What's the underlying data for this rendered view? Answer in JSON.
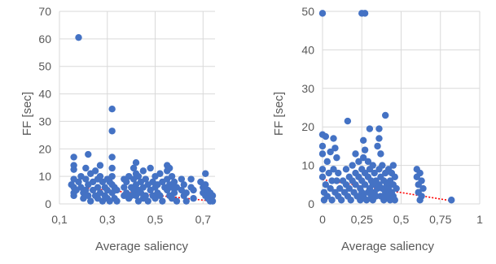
{
  "chart_data": [
    {
      "type": "scatter",
      "title": "",
      "xlabel": "Average saliency",
      "ylabel": "FF [sec]",
      "xlim": [
        0.1,
        0.75
      ],
      "ylim": [
        0,
        70
      ],
      "x_ticks": [
        "0,1",
        "0,3",
        "0,5",
        "0,7"
      ],
      "x_tick_values": [
        0.1,
        0.3,
        0.5,
        0.7
      ],
      "y_ticks": [
        "0",
        "10",
        "20",
        "30",
        "40",
        "50",
        "60",
        "70"
      ],
      "y_tick_values": [
        0,
        10,
        20,
        30,
        40,
        50,
        60,
        70
      ],
      "grid": "vertical and horizontal major gridlines",
      "marker_color": "#4472C4",
      "trendline": {
        "type": "linear",
        "color": "#FF0000",
        "style": "dotted",
        "start": [
          0.15,
          6.3
        ],
        "end": [
          0.72,
          1.2
        ]
      },
      "points": [
        [
          0.18,
          60.5
        ],
        [
          0.32,
          34.5
        ],
        [
          0.32,
          26.5
        ],
        [
          0.16,
          17
        ],
        [
          0.22,
          18
        ],
        [
          0.32,
          17
        ],
        [
          0.16,
          14
        ],
        [
          0.16,
          12.5
        ],
        [
          0.16,
          9
        ],
        [
          0.15,
          7
        ],
        [
          0.16,
          6
        ],
        [
          0.16,
          4
        ],
        [
          0.16,
          3
        ],
        [
          0.17,
          5
        ],
        [
          0.18,
          8
        ],
        [
          0.19,
          10
        ],
        [
          0.19,
          6
        ],
        [
          0.2,
          4
        ],
        [
          0.2,
          2
        ],
        [
          0.21,
          13
        ],
        [
          0.21,
          9
        ],
        [
          0.21,
          5
        ],
        [
          0.22,
          7
        ],
        [
          0.22,
          3
        ],
        [
          0.23,
          11
        ],
        [
          0.23,
          1
        ],
        [
          0.24,
          8
        ],
        [
          0.24,
          5
        ],
        [
          0.25,
          12
        ],
        [
          0.25,
          3
        ],
        [
          0.26,
          9
        ],
        [
          0.26,
          6
        ],
        [
          0.26,
          2
        ],
        [
          0.27,
          14
        ],
        [
          0.27,
          10
        ],
        [
          0.27,
          4
        ],
        [
          0.28,
          8
        ],
        [
          0.28,
          1
        ],
        [
          0.29,
          6
        ],
        [
          0.29,
          3
        ],
        [
          0.3,
          9
        ],
        [
          0.3,
          5
        ],
        [
          0.3,
          2
        ],
        [
          0.31,
          8
        ],
        [
          0.31,
          1
        ],
        [
          0.32,
          13
        ],
        [
          0.32,
          10
        ],
        [
          0.32,
          7
        ],
        [
          0.32,
          4
        ],
        [
          0.33,
          6
        ],
        [
          0.33,
          2
        ],
        [
          0.34,
          5
        ],
        [
          0.34,
          1
        ],
        [
          0.37,
          9
        ],
        [
          0.37,
          6
        ],
        [
          0.37,
          3
        ],
        [
          0.38,
          8
        ],
        [
          0.38,
          4
        ],
        [
          0.39,
          10
        ],
        [
          0.39,
          2
        ],
        [
          0.4,
          6
        ],
        [
          0.4,
          3
        ],
        [
          0.41,
          13
        ],
        [
          0.41,
          9
        ],
        [
          0.41,
          5
        ],
        [
          0.42,
          15
        ],
        [
          0.42,
          11
        ],
        [
          0.42,
          7
        ],
        [
          0.42,
          3
        ],
        [
          0.43,
          10
        ],
        [
          0.43,
          5
        ],
        [
          0.43,
          1
        ],
        [
          0.44,
          8
        ],
        [
          0.44,
          4
        ],
        [
          0.45,
          12
        ],
        [
          0.45,
          6
        ],
        [
          0.45,
          2
        ],
        [
          0.46,
          9
        ],
        [
          0.46,
          3
        ],
        [
          0.47,
          7
        ],
        [
          0.47,
          1
        ],
        [
          0.48,
          13
        ],
        [
          0.48,
          5
        ],
        [
          0.49,
          8
        ],
        [
          0.49,
          3
        ],
        [
          0.5,
          10
        ],
        [
          0.5,
          6
        ],
        [
          0.5,
          2
        ],
        [
          0.51,
          7
        ],
        [
          0.51,
          4
        ],
        [
          0.52,
          11
        ],
        [
          0.52,
          3
        ],
        [
          0.53,
          8
        ],
        [
          0.53,
          1
        ],
        [
          0.54,
          6
        ],
        [
          0.55,
          14
        ],
        [
          0.55,
          12
        ],
        [
          0.55,
          9
        ],
        [
          0.55,
          5
        ],
        [
          0.56,
          13
        ],
        [
          0.56,
          7
        ],
        [
          0.56,
          3
        ],
        [
          0.57,
          10
        ],
        [
          0.57,
          6
        ],
        [
          0.57,
          2
        ],
        [
          0.58,
          8
        ],
        [
          0.58,
          4
        ],
        [
          0.59,
          6
        ],
        [
          0.59,
          1
        ],
        [
          0.61,
          9
        ],
        [
          0.61,
          5
        ],
        [
          0.62,
          7
        ],
        [
          0.62,
          3
        ],
        [
          0.63,
          4
        ],
        [
          0.63,
          1
        ],
        [
          0.65,
          9
        ],
        [
          0.65,
          6
        ],
        [
          0.66,
          5
        ],
        [
          0.66,
          2
        ],
        [
          0.69,
          8
        ],
        [
          0.7,
          6
        ],
        [
          0.7,
          4
        ],
        [
          0.71,
          11
        ],
        [
          0.71,
          7
        ],
        [
          0.71,
          3
        ],
        [
          0.72,
          5
        ],
        [
          0.72,
          2
        ],
        [
          0.73,
          4
        ],
        [
          0.73,
          1
        ],
        [
          0.74,
          3
        ],
        [
          0.74,
          1
        ]
      ]
    },
    {
      "type": "scatter",
      "title": "",
      "xlabel": "Average saliency",
      "ylabel": "FF [sec]",
      "xlim": [
        0,
        1
      ],
      "ylim": [
        0,
        50
      ],
      "x_ticks": [
        "0",
        "0,25",
        "0,5",
        "0,75",
        "1"
      ],
      "x_tick_values": [
        0,
        0.25,
        0.5,
        0.75,
        1
      ],
      "y_ticks": [
        "0",
        "10",
        "20",
        "30",
        "40",
        "50"
      ],
      "y_tick_values": [
        0,
        10,
        20,
        30,
        40,
        50
      ],
      "grid": "vertical and horizontal major gridlines",
      "marker_color": "#4472C4",
      "trendline": {
        "type": "linear",
        "color": "#FF0000",
        "style": "dotted",
        "start": [
          0,
          6.3
        ],
        "end": [
          0.82,
          0.8
        ]
      },
      "points": [
        [
          0.0,
          49.5
        ],
        [
          0.25,
          49.5
        ],
        [
          0.27,
          49.5
        ],
        [
          0.0,
          18
        ],
        [
          0.0,
          15
        ],
        [
          0.0,
          13
        ],
        [
          0.0,
          9
        ],
        [
          0.0,
          7
        ],
        [
          0.01,
          3
        ],
        [
          0.01,
          1
        ],
        [
          0.02,
          17.5
        ],
        [
          0.02,
          5
        ],
        [
          0.03,
          11
        ],
        [
          0.03,
          2
        ],
        [
          0.04,
          8
        ],
        [
          0.05,
          13.5
        ],
        [
          0.05,
          4
        ],
        [
          0.06,
          6
        ],
        [
          0.06,
          1
        ],
        [
          0.07,
          17
        ],
        [
          0.07,
          9
        ],
        [
          0.08,
          14.5
        ],
        [
          0.08,
          3
        ],
        [
          0.09,
          12
        ],
        [
          0.09,
          6
        ],
        [
          0.1,
          8
        ],
        [
          0.1,
          2
        ],
        [
          0.11,
          4
        ],
        [
          0.12,
          1
        ],
        [
          0.13,
          6
        ],
        [
          0.14,
          3
        ],
        [
          0.15,
          9
        ],
        [
          0.15,
          5
        ],
        [
          0.16,
          21.5
        ],
        [
          0.16,
          2
        ],
        [
          0.17,
          7
        ],
        [
          0.17,
          4
        ],
        [
          0.18,
          1
        ],
        [
          0.19,
          10
        ],
        [
          0.19,
          6
        ],
        [
          0.2,
          3
        ],
        [
          0.21,
          13
        ],
        [
          0.21,
          8
        ],
        [
          0.21,
          5
        ],
        [
          0.22,
          2
        ],
        [
          0.23,
          11
        ],
        [
          0.23,
          7
        ],
        [
          0.24,
          4
        ],
        [
          0.24,
          1
        ],
        [
          0.25,
          9
        ],
        [
          0.25,
          6
        ],
        [
          0.25,
          3
        ],
        [
          0.26,
          16.5
        ],
        [
          0.26,
          12
        ],
        [
          0.26,
          2
        ],
        [
          0.27,
          14
        ],
        [
          0.27,
          8
        ],
        [
          0.27,
          5
        ],
        [
          0.28,
          1
        ],
        [
          0.29,
          11
        ],
        [
          0.29,
          7
        ],
        [
          0.29,
          3
        ],
        [
          0.3,
          19.5
        ],
        [
          0.3,
          9
        ],
        [
          0.3,
          4
        ],
        [
          0.31,
          6
        ],
        [
          0.31,
          2
        ],
        [
          0.32,
          10
        ],
        [
          0.32,
          5
        ],
        [
          0.32,
          1
        ],
        [
          0.33,
          8
        ],
        [
          0.33,
          3
        ],
        [
          0.34,
          6
        ],
        [
          0.34,
          2
        ],
        [
          0.35,
          15
        ],
        [
          0.35,
          4
        ],
        [
          0.36,
          19.5
        ],
        [
          0.36,
          17
        ],
        [
          0.36,
          9
        ],
        [
          0.36,
          5
        ],
        [
          0.37,
          13
        ],
        [
          0.37,
          7
        ],
        [
          0.37,
          2
        ],
        [
          0.38,
          10
        ],
        [
          0.38,
          4
        ],
        [
          0.39,
          6
        ],
        [
          0.39,
          1
        ],
        [
          0.4,
          23
        ],
        [
          0.4,
          8
        ],
        [
          0.4,
          3
        ],
        [
          0.41,
          5
        ],
        [
          0.41,
          2
        ],
        [
          0.42,
          9
        ],
        [
          0.42,
          4
        ],
        [
          0.43,
          6
        ],
        [
          0.43,
          1
        ],
        [
          0.44,
          8
        ],
        [
          0.44,
          3
        ],
        [
          0.45,
          10
        ],
        [
          0.45,
          5
        ],
        [
          0.45,
          2
        ],
        [
          0.46,
          7
        ],
        [
          0.46,
          1
        ],
        [
          0.47,
          4
        ],
        [
          0.6,
          9
        ],
        [
          0.6,
          7
        ],
        [
          0.61,
          5
        ],
        [
          0.61,
          3
        ],
        [
          0.62,
          8
        ],
        [
          0.62,
          1
        ],
        [
          0.63,
          6
        ],
        [
          0.63,
          2
        ],
        [
          0.64,
          4
        ],
        [
          0.82,
          1
        ]
      ]
    }
  ]
}
